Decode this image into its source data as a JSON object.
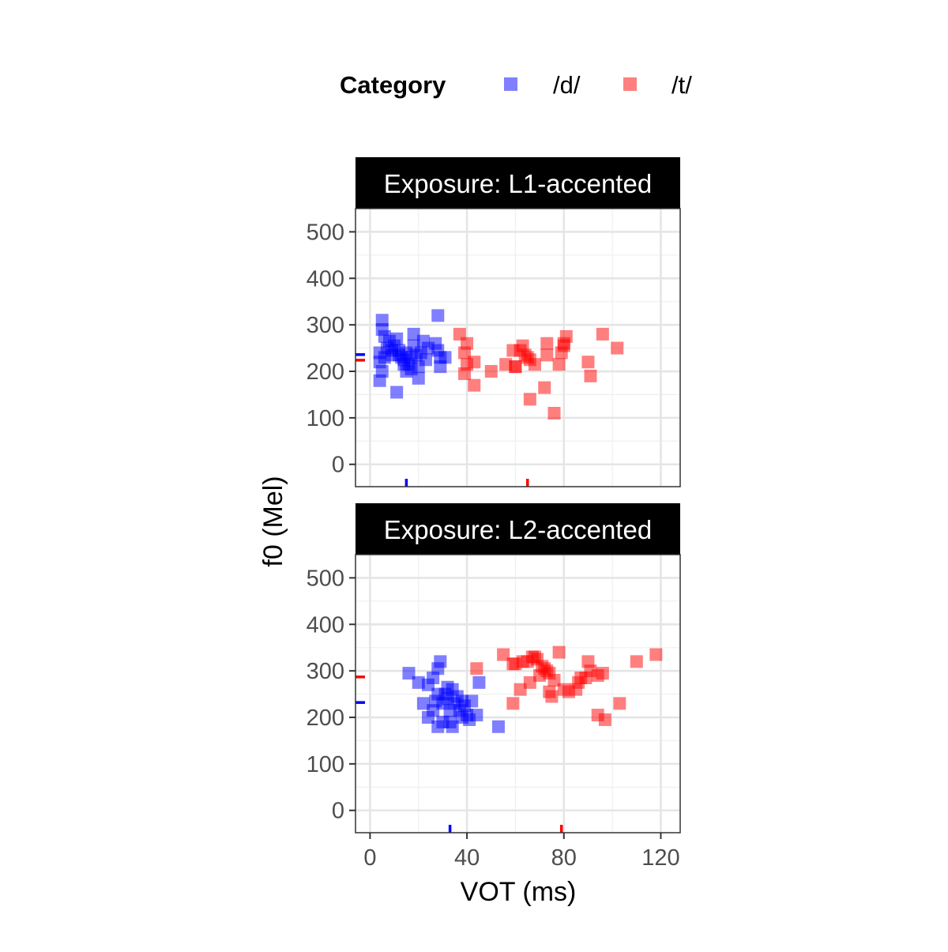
{
  "chart_data": {
    "type": "scatter",
    "xlabel": "VOT (ms)",
    "ylabel": "f0 (Mel)",
    "xlim": [
      -6,
      128
    ],
    "ylim": [
      -48,
      550
    ],
    "x_ticks": [
      0,
      40,
      80,
      120
    ],
    "y_ticks": [
      0,
      100,
      200,
      300,
      400,
      500
    ],
    "grid": true,
    "legend": {
      "title": "Category",
      "position": "top",
      "entries": [
        {
          "label": "/d/",
          "color": "#0000ff"
        },
        {
          "label": "/t/",
          "color": "#ff0000"
        }
      ]
    },
    "panels": [
      {
        "strip": "Exposure: L1-accented",
        "series": [
          {
            "name": "/d/",
            "color": "#0000ff",
            "mean_x": 15,
            "mean_y": 236,
            "points": [
              [
                5,
                310
              ],
              [
                5,
                290
              ],
              [
                6,
                275
              ],
              [
                8,
                265
              ],
              [
                4,
                240
              ],
              [
                6,
                230
              ],
              [
                7,
                250
              ],
              [
                4,
                220
              ],
              [
                5,
                200
              ],
              [
                4,
                180
              ],
              [
                9,
                235
              ],
              [
                10,
                255
              ],
              [
                11,
                270
              ],
              [
                12,
                245
              ],
              [
                13,
                230
              ],
              [
                14,
                225
              ],
              [
                15,
                240
              ],
              [
                14,
                215
              ],
              [
                15,
                200
              ],
              [
                16,
                215
              ],
              [
                17,
                230
              ],
              [
                18,
                280
              ],
              [
                18,
                255
              ],
              [
                19,
                235
              ],
              [
                20,
                210
              ],
              [
                20,
                185
              ],
              [
                21,
                240
              ],
              [
                22,
                265
              ],
              [
                24,
                250
              ],
              [
                27,
                260
              ],
              [
                28,
                245
              ],
              [
                29,
                230
              ],
              [
                29,
                210
              ],
              [
                28,
                320
              ],
              [
                31,
                230
              ],
              [
                11,
                155
              ],
              [
                12,
                235
              ],
              [
                9,
                245
              ],
              [
                17,
                205
              ],
              [
                23,
                225
              ]
            ]
          },
          {
            "name": "/t/",
            "color": "#ff0000",
            "mean_x": 65,
            "mean_y": 224,
            "points": [
              [
                37,
                280
              ],
              [
                39,
                240
              ],
              [
                40,
                260
              ],
              [
                40,
                215
              ],
              [
                39,
                195
              ],
              [
                43,
                220
              ],
              [
                43,
                170
              ],
              [
                50,
                200
              ],
              [
                56,
                215
              ],
              [
                59,
                245
              ],
              [
                60,
                210
              ],
              [
                62,
                245
              ],
              [
                63,
                255
              ],
              [
                64,
                235
              ],
              [
                65,
                230
              ],
              [
                66,
                225
              ],
              [
                66,
                140
              ],
              [
                68,
                215
              ],
              [
                72,
                165
              ],
              [
                73,
                235
              ],
              [
                73,
                260
              ],
              [
                76,
                110
              ],
              [
                78,
                215
              ],
              [
                79,
                240
              ],
              [
                80,
                260
              ],
              [
                80,
                255
              ],
              [
                81,
                275
              ],
              [
                90,
                220
              ],
              [
                91,
                190
              ],
              [
                96,
                280
              ],
              [
                102,
                250
              ],
              [
                60,
                210
              ]
            ]
          }
        ]
      },
      {
        "strip": "Exposure: L2-accented",
        "series": [
          {
            "name": "/d/",
            "color": "#0000ff",
            "mean_x": 33,
            "mean_y": 232,
            "points": [
              [
                16,
                295
              ],
              [
                20,
                275
              ],
              [
                24,
                270
              ],
              [
                26,
                285
              ],
              [
                28,
                305
              ],
              [
                29,
                320
              ],
              [
                22,
                230
              ],
              [
                24,
                200
              ],
              [
                26,
                215
              ],
              [
                27,
                235
              ],
              [
                28,
                250
              ],
              [
                28,
                180
              ],
              [
                30,
                190
              ],
              [
                30,
                230
              ],
              [
                31,
                250
              ],
              [
                32,
                265
              ],
              [
                32,
                240
              ],
              [
                33,
                215
              ],
              [
                33,
                190
              ],
              [
                34,
                260
              ],
              [
                34,
                180
              ],
              [
                35,
                230
              ],
              [
                36,
                245
              ],
              [
                37,
                215
              ],
              [
                38,
                200
              ],
              [
                38,
                235
              ],
              [
                39,
                225
              ],
              [
                40,
                205
              ],
              [
                41,
                195
              ],
              [
                42,
                235
              ],
              [
                44,
                205
              ],
              [
                45,
                275
              ],
              [
                53,
                180
              ]
            ]
          },
          {
            "name": "/t/",
            "color": "#ff0000",
            "mean_x": 79,
            "mean_y": 287,
            "points": [
              [
                44,
                305
              ],
              [
                55,
                335
              ],
              [
                59,
                315
              ],
              [
                59,
                230
              ],
              [
                62,
                260
              ],
              [
                63,
                320
              ],
              [
                65,
                320
              ],
              [
                66,
                275
              ],
              [
                67,
                330
              ],
              [
                68,
                330
              ],
              [
                69,
                325
              ],
              [
                70,
                290
              ],
              [
                71,
                310
              ],
              [
                72,
                305
              ],
              [
                73,
                300
              ],
              [
                74,
                295
              ],
              [
                74,
                255
              ],
              [
                75,
                245
              ],
              [
                76,
                280
              ],
              [
                78,
                340
              ],
              [
                80,
                260
              ],
              [
                82,
                255
              ],
              [
                85,
                260
              ],
              [
                86,
                275
              ],
              [
                87,
                285
              ],
              [
                89,
                285
              ],
              [
                90,
                320
              ],
              [
                91,
                300
              ],
              [
                94,
                290
              ],
              [
                94,
                205
              ],
              [
                96,
                295
              ],
              [
                97,
                195
              ],
              [
                103,
                230
              ],
              [
                110,
                320
              ],
              [
                118,
                335
              ],
              [
                60,
                315
              ]
            ]
          }
        ]
      }
    ]
  }
}
